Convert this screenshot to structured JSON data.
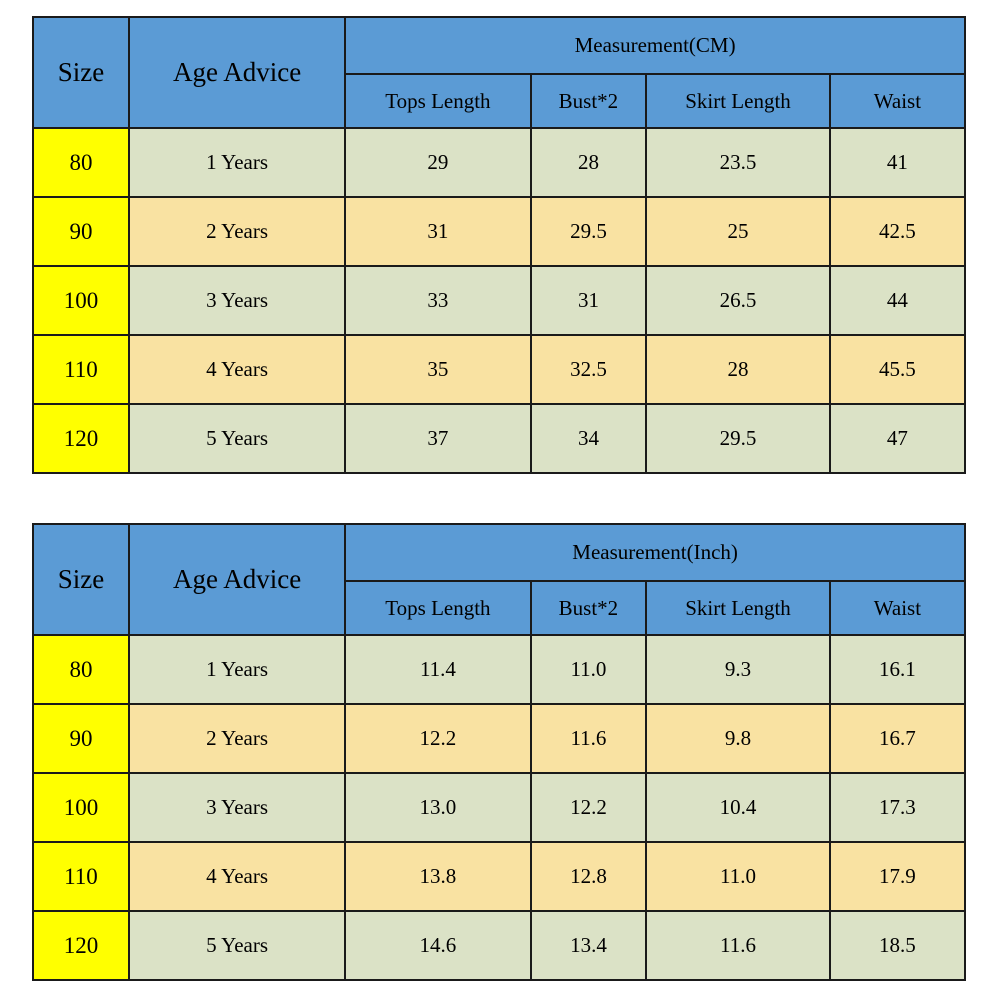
{
  "colors": {
    "header_blue": "#5B9BD5",
    "size_yellow": "#FFFF00",
    "row_green": "#DBE2C6",
    "row_tan": "#F9E2A2",
    "border": "#1a1a1a",
    "text": "#000000"
  },
  "tables": [
    {
      "id": "cm",
      "headers": {
        "size": "Size",
        "age": "Age Advice",
        "measurement": "Measurement(CM)",
        "columns": [
          "Tops Length",
          "Bust*2",
          "Skirt Length",
          "Waist"
        ]
      },
      "rows": [
        {
          "size": "80",
          "age": "1 Years",
          "values": [
            "29",
            "28",
            "23.5",
            "41"
          ]
        },
        {
          "size": "90",
          "age": "2 Years",
          "values": [
            "31",
            "29.5",
            "25",
            "42.5"
          ]
        },
        {
          "size": "100",
          "age": "3 Years",
          "values": [
            "33",
            "31",
            "26.5",
            "44"
          ]
        },
        {
          "size": "110",
          "age": "4 Years",
          "values": [
            "35",
            "32.5",
            "28",
            "45.5"
          ]
        },
        {
          "size": "120",
          "age": "5 Years",
          "values": [
            "37",
            "34",
            "29.5",
            "47"
          ]
        }
      ]
    },
    {
      "id": "inch",
      "headers": {
        "size": "Size",
        "age": "Age Advice",
        "measurement": "Measurement(Inch)",
        "columns": [
          "Tops Length",
          "Bust*2",
          "Skirt Length",
          "Waist"
        ]
      },
      "rows": [
        {
          "size": "80",
          "age": "1 Years",
          "values": [
            "11.4",
            "11.0",
            "9.3",
            "16.1"
          ]
        },
        {
          "size": "90",
          "age": "2 Years",
          "values": [
            "12.2",
            "11.6",
            "9.8",
            "16.7"
          ]
        },
        {
          "size": "100",
          "age": "3 Years",
          "values": [
            "13.0",
            "12.2",
            "10.4",
            "17.3"
          ]
        },
        {
          "size": "110",
          "age": "4 Years",
          "values": [
            "13.8",
            "12.8",
            "11.0",
            "17.9"
          ]
        },
        {
          "size": "120",
          "age": "5 Years",
          "values": [
            "14.6",
            "13.4",
            "11.6",
            "18.5"
          ]
        }
      ]
    }
  ]
}
